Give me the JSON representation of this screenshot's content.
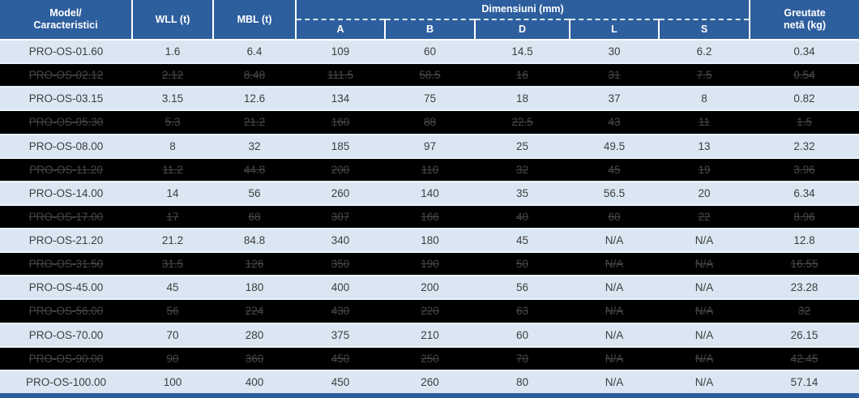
{
  "header": {
    "model_line1": "Model/",
    "model_line2": "Caracteristici",
    "wll": "WLL (t)",
    "mbl": "MBL (t)",
    "dimensions_group": "Dimensiuni (mm)",
    "dim_a": "A",
    "dim_b": "B",
    "dim_d": "D",
    "dim_l": "L",
    "dim_s": "S",
    "weight_line1": "Greutate",
    "weight_line2": "netă (kg)"
  },
  "chart_data": {
    "type": "table",
    "title": "",
    "columns": [
      "Model/Caracteristici",
      "WLL (t)",
      "MBL (t)",
      "A",
      "B",
      "D",
      "L",
      "S",
      "Greutate netă (kg)"
    ],
    "column_group": {
      "label": "Dimensiuni (mm)",
      "spans": [
        "A",
        "B",
        "D",
        "L",
        "S"
      ]
    },
    "column_keys": [
      "model",
      "wll",
      "mbl",
      "a",
      "b",
      "d",
      "l",
      "s",
      "weight"
    ],
    "rows": [
      [
        "PRO-OS-01.60",
        "1.6",
        "6.4",
        "109",
        "60",
        "14.5",
        "30",
        "6.2",
        "0.34"
      ],
      [
        "PRO-OS-02.12",
        "2.12",
        "8.48",
        "111.5",
        "58.5",
        "16",
        "31",
        "7.5",
        "0.54"
      ],
      [
        "PRO-OS-03.15",
        "3.15",
        "12.6",
        "134",
        "75",
        "18",
        "37",
        "8",
        "0.82"
      ],
      [
        "PRO-OS-05.30",
        "5.3",
        "21.2",
        "160",
        "88",
        "22.5",
        "43",
        "11",
        "1.5"
      ],
      [
        "PRO-OS-08.00",
        "8",
        "32",
        "185",
        "97",
        "25",
        "49.5",
        "13",
        "2.32"
      ],
      [
        "PRO-OS-11.20",
        "11.2",
        "44.8",
        "200",
        "110",
        "32",
        "45",
        "19",
        "3.96"
      ],
      [
        "PRO-OS-14.00",
        "14",
        "56",
        "260",
        "140",
        "35",
        "56.5",
        "20",
        "6.34"
      ],
      [
        "PRO-OS-17.00",
        "17",
        "68",
        "307",
        "166",
        "40",
        "60",
        "22",
        "8.96"
      ],
      [
        "PRO-OS-21.20",
        "21.2",
        "84.8",
        "340",
        "180",
        "45",
        "N/A",
        "N/A",
        "12.8"
      ],
      [
        "PRO-OS-31.50",
        "31.5",
        "126",
        "350",
        "190",
        "50",
        "N/A",
        "N/A",
        "16.55"
      ],
      [
        "PRO-OS-45.00",
        "45",
        "180",
        "400",
        "200",
        "56",
        "N/A",
        "N/A",
        "23.28"
      ],
      [
        "PRO-OS-56.00",
        "56",
        "224",
        "430",
        "220",
        "63",
        "N/A",
        "N/A",
        "32"
      ],
      [
        "PRO-OS-70.00",
        "70",
        "280",
        "375",
        "210",
        "60",
        "N/A",
        "N/A",
        "26.15"
      ],
      [
        "PRO-OS-90.00",
        "90",
        "360",
        "450",
        "250",
        "70",
        "N/A",
        "N/A",
        "42.45"
      ],
      [
        "PRO-OS-100.00",
        "100",
        "400",
        "450",
        "260",
        "80",
        "N/A",
        "N/A",
        "57.14"
      ]
    ],
    "dark_row_indices": [
      1,
      3,
      5,
      7,
      9,
      11,
      13
    ]
  },
  "colors": {
    "header_blue": "#2d5e9e",
    "light_row": "#dae7f3",
    "dark_row": "#000000",
    "body_text": "#3d3d3d",
    "dark_row_text": "#474747",
    "header_text": "#ffffff",
    "bottom_bar": "#2d5e9e"
  }
}
